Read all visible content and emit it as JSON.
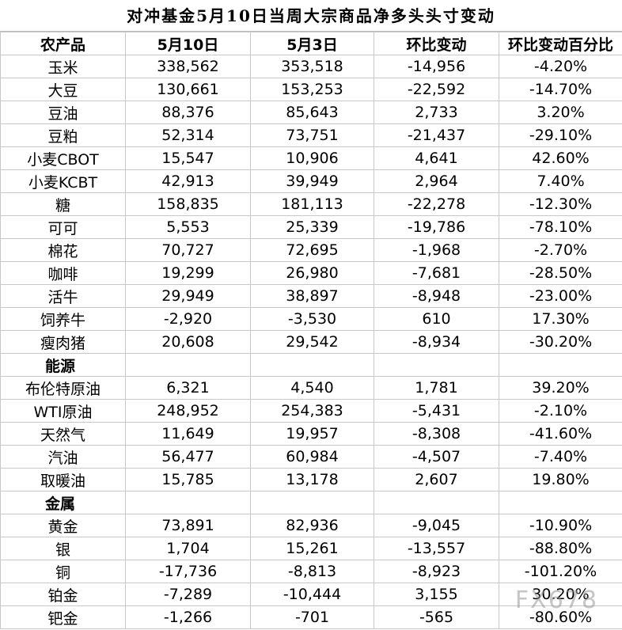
{
  "title": "对冲基金5月10日当周大宗商品净多头头寸变动",
  "table": {
    "columns": [
      "农产品",
      "5月10日",
      "5月3日",
      "环比变动",
      "环比变动百分比"
    ],
    "groups": [
      {
        "rows": [
          [
            "玉米",
            "338,562",
            "353,518",
            "-14,956",
            "-4.20%"
          ],
          [
            "大豆",
            "130,661",
            "153,253",
            "-22,592",
            "-14.70%"
          ],
          [
            "豆油",
            "88,376",
            "85,643",
            "2,733",
            "3.20%"
          ],
          [
            "豆粕",
            "52,314",
            "73,751",
            "-21,437",
            "-29.10%"
          ],
          [
            "小麦CBOT",
            "15,547",
            "10,906",
            "4,641",
            "42.60%"
          ],
          [
            "小麦KCBT",
            "42,913",
            "39,949",
            "2,964",
            "7.40%"
          ],
          [
            "糖",
            "158,835",
            "181,113",
            "-22,278",
            "-12.30%"
          ],
          [
            "可可",
            "5,553",
            "25,339",
            "-19,786",
            "-78.10%"
          ],
          [
            "棉花",
            "70,727",
            "72,695",
            "-1,968",
            "-2.70%"
          ],
          [
            "咖啡",
            "19,299",
            "26,980",
            "-7,681",
            "-28.50%"
          ],
          [
            "活牛",
            "29,949",
            "38,897",
            "-8,948",
            "-23.00%"
          ],
          [
            "饲养牛",
            "-2,920",
            "-3,530",
            "610",
            "17.30%"
          ],
          [
            "瘦肉猪",
            "20,608",
            "29,542",
            "-8,934",
            "-30.20%"
          ]
        ]
      },
      {
        "name": "能源",
        "rows": [
          [
            "布伦特原油",
            "6,321",
            "4,540",
            "1,781",
            "39.20%"
          ],
          [
            "WTI原油",
            "248,952",
            "254,383",
            "-5,431",
            "-2.10%"
          ],
          [
            "天然气",
            "11,649",
            "19,957",
            "-8,308",
            "-41.60%"
          ],
          [
            "汽油",
            "56,477",
            "60,984",
            "-4,507",
            "-7.40%"
          ],
          [
            "取暖油",
            "15,785",
            "13,178",
            "2,607",
            "19.80%"
          ]
        ]
      },
      {
        "name": "金属",
        "rows": [
          [
            "黄金",
            "73,891",
            "82,936",
            "-9,045",
            "-10.90%"
          ],
          [
            "银",
            "1,704",
            "15,261",
            "-13,557",
            "-88.80%"
          ],
          [
            "铜",
            "-17,736",
            "-8,813",
            "-8,923",
            "-101.20%"
          ],
          [
            "铂金",
            "-7,289",
            "-10,444",
            "3,155",
            "30.20%"
          ],
          [
            "钯金",
            "-1,266",
            "-701",
            "-565",
            "-80.60%"
          ]
        ]
      }
    ]
  },
  "watermark": "FX678"
}
